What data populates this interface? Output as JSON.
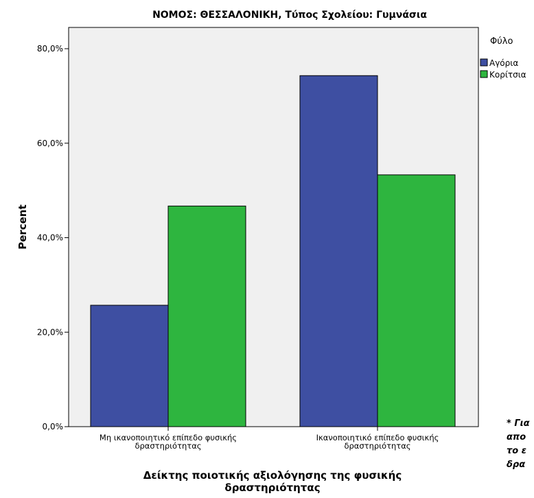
{
  "chart_data": {
    "type": "bar",
    "title": "ΝΟΜΟΣ: ΘΕΣΣΑΛΟΝΙΚΗ, Τύπος Σχολείου: Γυμνάσια",
    "xlabel": "Δείκτης ποιοτικής αξιολόγησης της φυσικής δραστηριότητας",
    "xlabel_lines": [
      "Δείκτης ποιοτικής αξιολόγησης της φυσικής",
      "δραστηριότητας"
    ],
    "ylabel": "Percent",
    "ylim": [
      0,
      80
    ],
    "yticks": [
      0,
      20,
      40,
      60,
      80
    ],
    "ytick_labels": [
      "0,0%",
      "20,0%",
      "40,0%",
      "60,0%",
      "80,0%"
    ],
    "categories": [
      [
        "Μη ικανοποιητικό επίπεδο φυσικής",
        "δραστηριότητας"
      ],
      [
        "Ικανοποιητικό επίπεδο φυσικής",
        "δραστηριότητας"
      ]
    ],
    "series": [
      {
        "name": "Αγόρια",
        "color": "#3e4fa2",
        "values": [
          25.7,
          74.3
        ]
      },
      {
        "name": "Κορίτσια",
        "color": "#2eb53f",
        "values": [
          46.7,
          53.3
        ]
      }
    ],
    "legend": {
      "title": "Φύλο",
      "position": "top-right"
    },
    "grid": false,
    "plot_background": "#f0f0f0"
  },
  "footnote_lines": [
    "* Για",
    "απο",
    "το ε",
    "δρα"
  ]
}
